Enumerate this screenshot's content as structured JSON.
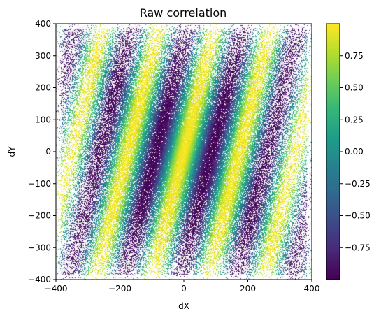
{
  "chart_data": {
    "type": "heatmap",
    "title": "Raw correlation",
    "xlabel": "dX",
    "ylabel": "dY",
    "xlim": [
      -400,
      400
    ],
    "ylim": [
      -400,
      400
    ],
    "x_ticks": [
      -400,
      -200,
      0,
      200,
      400
    ],
    "y_ticks": [
      -400,
      -300,
      -200,
      -100,
      0,
      100,
      200,
      300,
      400
    ],
    "x_tick_labels": [
      "−400",
      "−200",
      "0",
      "200",
      "400"
    ],
    "y_tick_labels": [
      "−400",
      "−300",
      "−200",
      "−100",
      "0",
      "100",
      "200",
      "300",
      "400"
    ],
    "colorbar": {
      "colormap": "viridis",
      "range": [
        -1.0,
        1.0
      ],
      "ticks": [
        -0.75,
        -0.5,
        -0.25,
        0.0,
        0.25,
        0.5,
        0.75
      ],
      "tick_labels": [
        "−0.75",
        "−0.50",
        "−0.25",
        "0.00",
        "0.25",
        "0.50",
        "0.75"
      ]
    },
    "pattern": {
      "description": "sampled cosine correlation in tilted stripes; sampling density falls off toward the edges",
      "period": 175,
      "stripe_slope_dx_per_dy": 0.25
    },
    "grid": false
  }
}
